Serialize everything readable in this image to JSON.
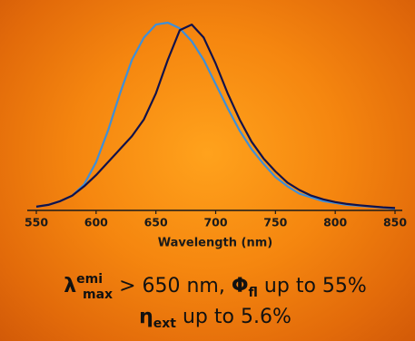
{
  "chart_data": {
    "type": "line",
    "x_label": "Wavelength (nm)",
    "x": [
      550,
      560,
      570,
      580,
      590,
      600,
      610,
      620,
      630,
      640,
      650,
      660,
      670,
      680,
      690,
      700,
      710,
      720,
      730,
      740,
      750,
      760,
      770,
      780,
      790,
      800,
      810,
      820,
      830,
      840,
      850
    ],
    "series": [
      {
        "color": "#3f8fd8",
        "values": [
          0.01,
          0.02,
          0.04,
          0.07,
          0.13,
          0.25,
          0.42,
          0.62,
          0.8,
          0.92,
          0.99,
          1.0,
          0.97,
          0.9,
          0.8,
          0.67,
          0.54,
          0.42,
          0.32,
          0.24,
          0.17,
          0.12,
          0.08,
          0.06,
          0.04,
          0.03,
          0.02,
          0.015,
          0.01,
          0.005,
          0
        ]
      },
      {
        "color": "#12124a",
        "values": [
          0.01,
          0.02,
          0.04,
          0.07,
          0.12,
          0.18,
          0.25,
          0.32,
          0.39,
          0.48,
          0.62,
          0.8,
          0.96,
          0.99,
          0.92,
          0.78,
          0.62,
          0.48,
          0.36,
          0.27,
          0.2,
          0.14,
          0.1,
          0.07,
          0.05,
          0.035,
          0.025,
          0.018,
          0.012,
          0.007,
          0.003
        ]
      }
    ],
    "xlim": [
      550,
      850
    ],
    "xticks": [
      550,
      600,
      650,
      700,
      750,
      800,
      850
    ],
    "ylim": [
      0,
      1
    ],
    "annotations": [
      [
        "λ",
        "emi",
        "max",
        " > 650 nm, ",
        "Φ",
        "fl",
        " up to 55%"
      ],
      [
        "η",
        "ext",
        " up to 5.6%"
      ]
    ]
  }
}
